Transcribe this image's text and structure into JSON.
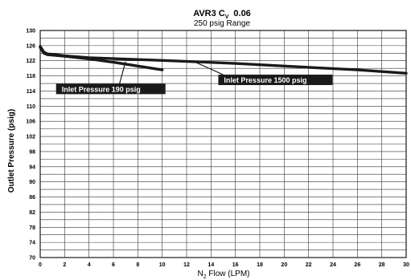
{
  "chart_data": {
    "type": "line",
    "title_main": "AVR3 C",
    "title_sub": "V",
    "title_value": "0.06",
    "subtitle": "250 psig Range",
    "ylabel": "Outlet Pressure (psig)",
    "xlabel_prefix": "N",
    "xlabel_sub": "2",
    "xlabel_suffix": " Flow (LPM)",
    "xlim": [
      0,
      30
    ],
    "ylim": [
      70,
      130
    ],
    "x_ticks": [
      0,
      2,
      4,
      6,
      8,
      10,
      12,
      14,
      16,
      18,
      20,
      22,
      24,
      26,
      28,
      30
    ],
    "y_ticks": [
      70,
      74,
      78,
      82,
      86,
      90,
      94,
      98,
      102,
      106,
      110,
      114,
      118,
      122,
      126,
      130
    ],
    "grid": true,
    "series": [
      {
        "name": "Inlet Pressure 190 psig",
        "color": "#1a1a1a",
        "x": [
          0,
          0.3,
          0.6,
          1,
          2,
          4,
          6,
          8,
          10
        ],
        "y": [
          125.5,
          124,
          123.6,
          123.5,
          123.2,
          122.5,
          121.6,
          120.6,
          119.6
        ]
      },
      {
        "name": "Inlet Pressure 1500 psig",
        "color": "#1a1a1a",
        "x": [
          0,
          0.3,
          0.6,
          1,
          2,
          4,
          10,
          16,
          20,
          26,
          30
        ],
        "y": [
          125.8,
          124.3,
          123.8,
          123.7,
          123.3,
          122.8,
          122.1,
          121.3,
          120.6,
          119.6,
          118.7
        ]
      }
    ],
    "annotations": [
      {
        "text": "Inlet Pressure 190 psig",
        "series": 0
      },
      {
        "text": "Inlet Pressure 1500 psig",
        "series": 1
      }
    ]
  }
}
